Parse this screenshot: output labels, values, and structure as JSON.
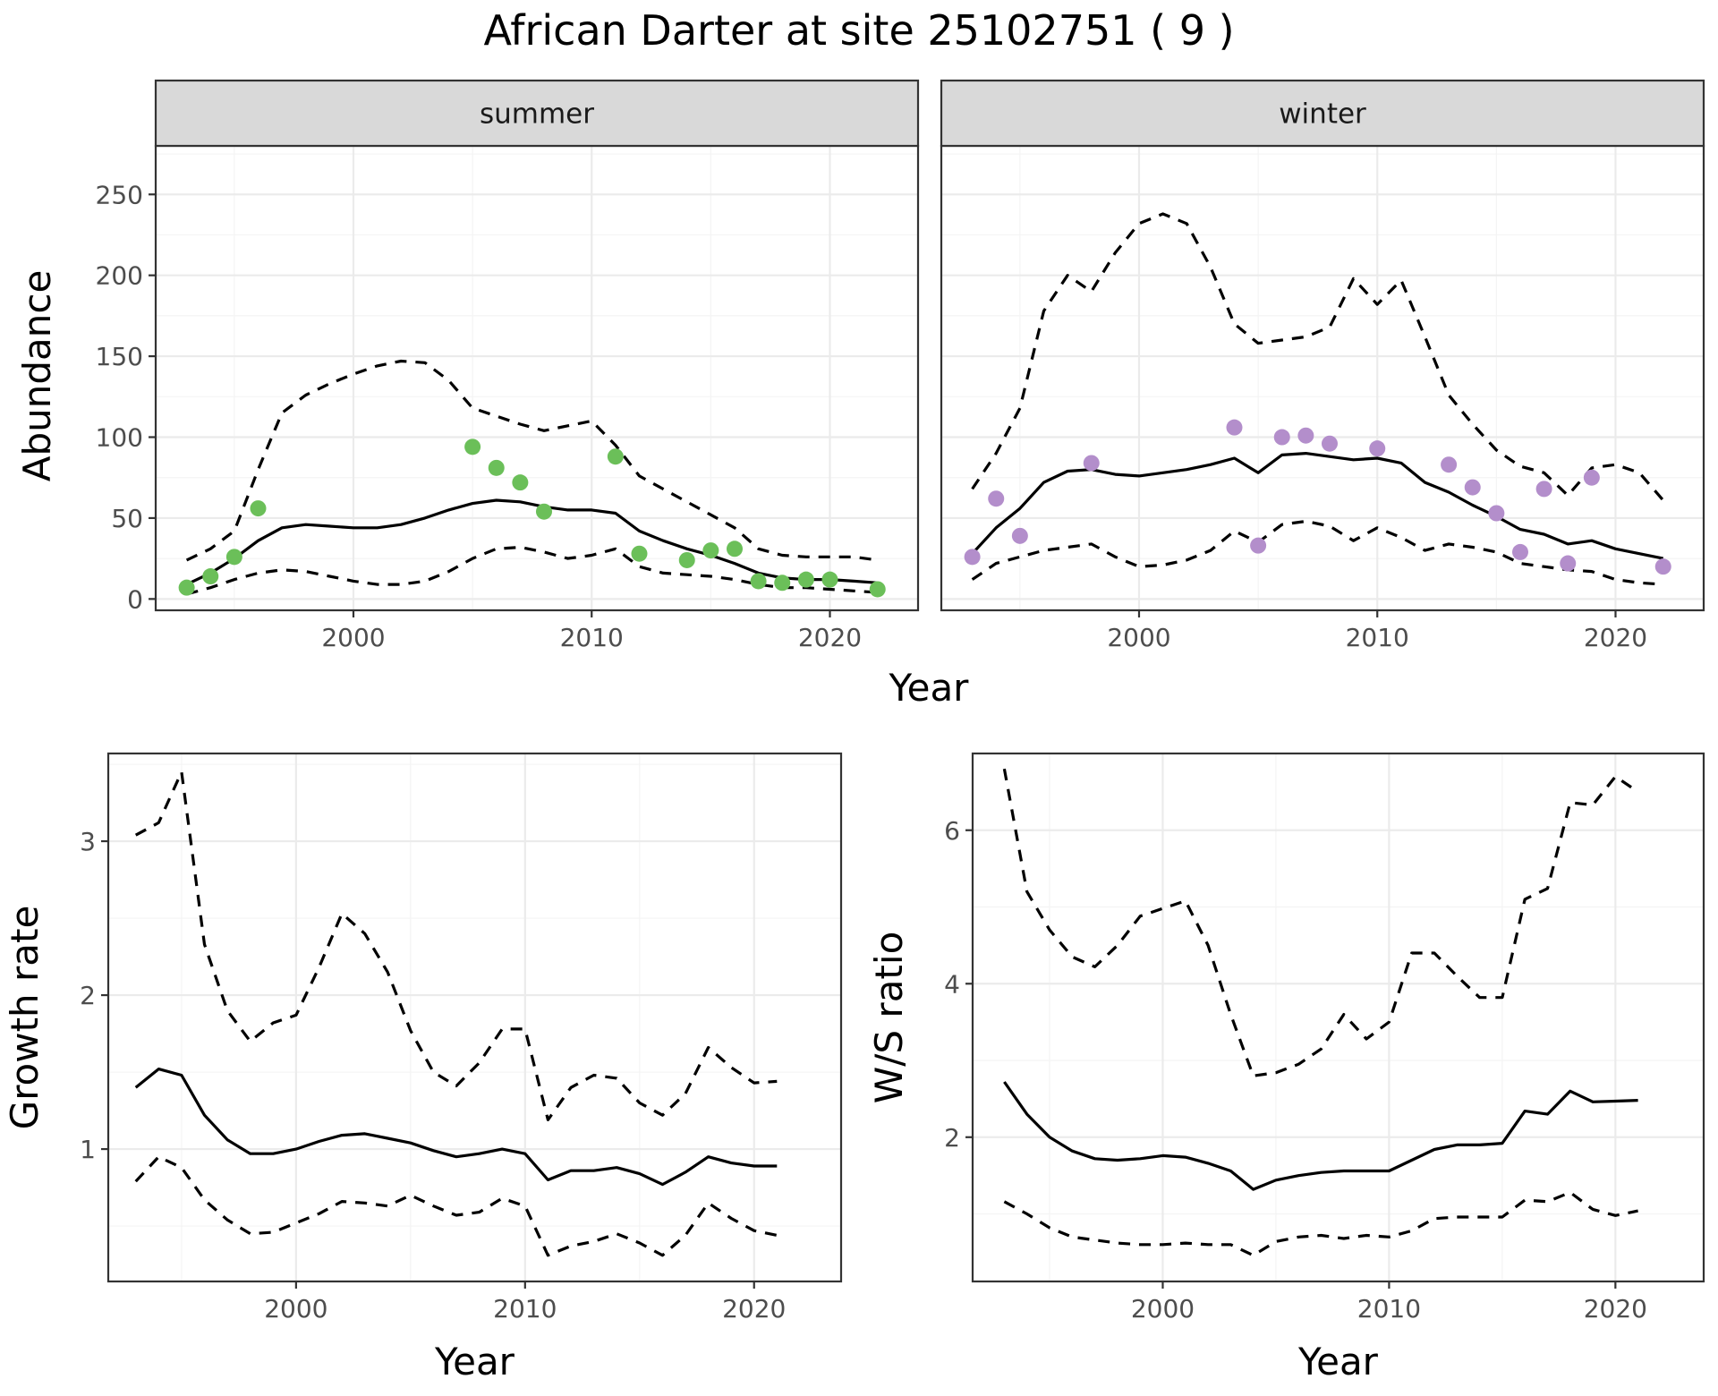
{
  "title": "African Darter at site 25102751 ( 9 )",
  "chart_data": [
    {
      "type": "line",
      "panel": "summer",
      "xlabel": "Year",
      "ylabel": "Abundance",
      "xlim": [
        1991.7,
        2023.7
      ],
      "ylim": [
        -7,
        280
      ],
      "xticks": [
        2000,
        2010,
        2020
      ],
      "yticks": [
        0,
        50,
        100,
        150,
        200,
        250
      ],
      "point_color": "#6bbf59",
      "x": [
        1993,
        1994,
        1995,
        1996,
        1997,
        1998,
        1999,
        2000,
        2001,
        2002,
        2003,
        2004,
        2005,
        2006,
        2007,
        2008,
        2009,
        2010,
        2011,
        2012,
        2013,
        2014,
        2015,
        2016,
        2017,
        2018,
        2019,
        2020,
        2021,
        2022
      ],
      "median": [
        9,
        16,
        25,
        36,
        44,
        46,
        45,
        44,
        44,
        46,
        50,
        55,
        59,
        61,
        60,
        57,
        55,
        55,
        53,
        42,
        36,
        31,
        27,
        22,
        16,
        13,
        12,
        12,
        11,
        10
      ],
      "lower": [
        3,
        7,
        12,
        16,
        18,
        17,
        14,
        11,
        9,
        9,
        11,
        17,
        25,
        31,
        32,
        29,
        25,
        27,
        31,
        20,
        16,
        15,
        14,
        12,
        9,
        7,
        7,
        6,
        5,
        4
      ],
      "upper": [
        24,
        31,
        42,
        80,
        115,
        126,
        133,
        139,
        144,
        147,
        146,
        135,
        118,
        113,
        108,
        104,
        107,
        110,
        95,
        76,
        68,
        60,
        52,
        44,
        31,
        27,
        26,
        26,
        26,
        24
      ],
      "points": {
        "x": [
          1993,
          1994,
          1995,
          1996,
          2005,
          2006,
          2007,
          2008,
          2011,
          2012,
          2014,
          2015,
          2016,
          2017,
          2018,
          2019,
          2020,
          2022
        ],
        "y": [
          7,
          14,
          26,
          56,
          94,
          81,
          72,
          54,
          88,
          28,
          24,
          30,
          31,
          11,
          10,
          12,
          12,
          6
        ]
      }
    },
    {
      "type": "line",
      "panel": "winter",
      "xlabel": "Year",
      "ylabel": "Abundance",
      "xlim": [
        1991.7,
        2023.7
      ],
      "ylim": [
        -7,
        280
      ],
      "xticks": [
        2000,
        2010,
        2020
      ],
      "yticks": [
        0,
        50,
        100,
        150,
        200,
        250
      ],
      "point_color": "#b38ecb",
      "x": [
        1993,
        1994,
        1995,
        1996,
        1997,
        1998,
        1999,
        2000,
        2001,
        2002,
        2003,
        2004,
        2005,
        2006,
        2007,
        2008,
        2009,
        2010,
        2011,
        2012,
        2013,
        2014,
        2015,
        2016,
        2017,
        2018,
        2019,
        2020,
        2021,
        2022
      ],
      "median": [
        28,
        44,
        56,
        72,
        79,
        80,
        77,
        76,
        78,
        80,
        83,
        87,
        78,
        89,
        90,
        88,
        86,
        87,
        84,
        72,
        66,
        58,
        51,
        43,
        40,
        34,
        36,
        31,
        28,
        25
      ],
      "lower": [
        12,
        22,
        26,
        30,
        32,
        34,
        26,
        20,
        21,
        24,
        30,
        42,
        35,
        46,
        48,
        45,
        36,
        44,
        38,
        30,
        34,
        32,
        29,
        22,
        20,
        18,
        17,
        12,
        10,
        9
      ],
      "upper": [
        68,
        90,
        118,
        178,
        200,
        190,
        214,
        232,
        238,
        232,
        205,
        170,
        158,
        160,
        162,
        168,
        198,
        182,
        197,
        162,
        126,
        108,
        92,
        82,
        78,
        64,
        81,
        83,
        78,
        61
      ],
      "points": {
        "x": [
          1993,
          1994,
          1995,
          1998,
          2004,
          2005,
          2006,
          2007,
          2008,
          2010,
          2013,
          2014,
          2015,
          2016,
          2017,
          2018,
          2019,
          2022
        ],
        "y": [
          26,
          62,
          39,
          84,
          106,
          33,
          100,
          101,
          96,
          93,
          83,
          69,
          53,
          29,
          68,
          22,
          75,
          20
        ]
      }
    },
    {
      "type": "line",
      "panel": "growth",
      "xlabel": "Year",
      "ylabel": "Growth rate",
      "xlim": [
        1991.8,
        2023.8
      ],
      "ylim": [
        0.14,
        3.57
      ],
      "xticks": [
        2000,
        2010,
        2020
      ],
      "yticks": [
        1,
        2,
        3
      ],
      "x": [
        1993,
        1994,
        1995,
        1996,
        1997,
        1998,
        1999,
        2000,
        2001,
        2002,
        2003,
        2004,
        2005,
        2006,
        2007,
        2008,
        2009,
        2010,
        2011,
        2012,
        2013,
        2014,
        2015,
        2016,
        2017,
        2018,
        2019,
        2020,
        2021
      ],
      "median": [
        1.4,
        1.52,
        1.48,
        1.22,
        1.06,
        0.97,
        0.97,
        1.0,
        1.05,
        1.09,
        1.1,
        1.07,
        1.04,
        0.99,
        0.95,
        0.97,
        1.0,
        0.97,
        0.8,
        0.86,
        0.86,
        0.88,
        0.84,
        0.77,
        0.85,
        0.95,
        0.91,
        0.89,
        0.89
      ],
      "lower": [
        0.79,
        0.95,
        0.88,
        0.67,
        0.54,
        0.45,
        0.46,
        0.52,
        0.58,
        0.66,
        0.65,
        0.63,
        0.7,
        0.63,
        0.57,
        0.59,
        0.68,
        0.63,
        0.31,
        0.37,
        0.4,
        0.45,
        0.39,
        0.31,
        0.44,
        0.65,
        0.55,
        0.47,
        0.44
      ],
      "upper": [
        3.04,
        3.12,
        3.45,
        2.33,
        1.9,
        1.7,
        1.82,
        1.87,
        2.18,
        2.53,
        2.4,
        2.15,
        1.77,
        1.5,
        1.41,
        1.56,
        1.78,
        1.78,
        1.19,
        1.4,
        1.48,
        1.46,
        1.3,
        1.22,
        1.36,
        1.66,
        1.53,
        1.43,
        1.44
      ]
    },
    {
      "type": "line",
      "panel": "ratio",
      "xlabel": "Year",
      "ylabel": "W/S ratio",
      "xlim": [
        1991.6,
        2023.9
      ],
      "ylim": [
        0.12,
        7.0
      ],
      "xticks": [
        2000,
        2010,
        2020
      ],
      "yticks": [
        2,
        4,
        6
      ],
      "x": [
        1993,
        1994,
        1995,
        1996,
        1997,
        1998,
        1999,
        2000,
        2001,
        2002,
        2003,
        2004,
        2005,
        2006,
        2007,
        2008,
        2009,
        2010,
        2011,
        2012,
        2013,
        2014,
        2015,
        2016,
        2017,
        2018,
        2019,
        2020,
        2021
      ],
      "median": [
        2.72,
        2.3,
        2.0,
        1.82,
        1.72,
        1.7,
        1.72,
        1.76,
        1.74,
        1.66,
        1.56,
        1.32,
        1.44,
        1.5,
        1.54,
        1.56,
        1.56,
        1.56,
        1.7,
        1.84,
        1.9,
        1.9,
        1.92,
        2.34,
        2.3,
        2.6,
        2.46,
        2.47,
        2.48
      ],
      "lower": [
        1.16,
        1.0,
        0.82,
        0.7,
        0.66,
        0.62,
        0.6,
        0.6,
        0.62,
        0.6,
        0.6,
        0.46,
        0.64,
        0.7,
        0.72,
        0.68,
        0.72,
        0.7,
        0.78,
        0.94,
        0.96,
        0.96,
        0.96,
        1.18,
        1.16,
        1.28,
        1.06,
        0.98,
        1.04
      ],
      "upper": [
        6.8,
        5.2,
        4.7,
        4.35,
        4.22,
        4.5,
        4.88,
        4.98,
        5.08,
        4.5,
        3.6,
        2.8,
        2.84,
        2.95,
        3.15,
        3.6,
        3.28,
        3.5,
        4.4,
        4.4,
        4.1,
        3.82,
        3.82,
        5.1,
        5.24,
        6.36,
        6.33,
        6.7,
        6.5
      ]
    }
  ],
  "strip_labels": [
    "summer",
    "winter"
  ]
}
